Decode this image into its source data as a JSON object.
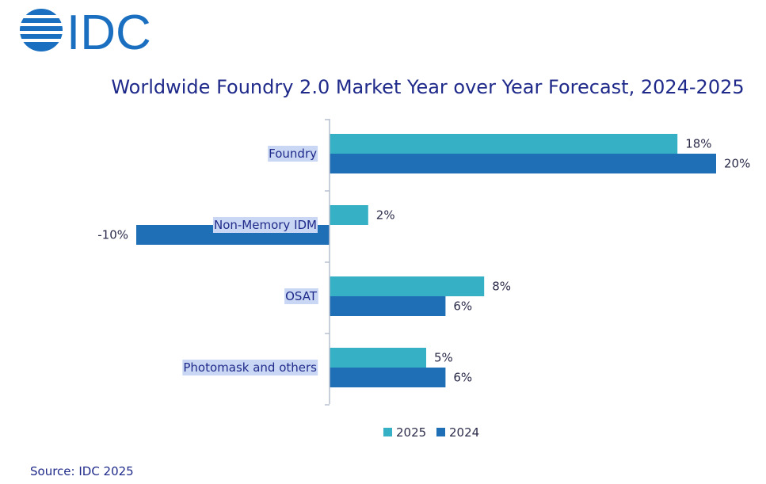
{
  "logo": {
    "text": "IDC",
    "color": "#1a6fc0"
  },
  "source": "Source: IDC 2025",
  "colors": {
    "s2025": "#35b0c4",
    "s2024": "#1f6fb7",
    "title": "#1f2a8a",
    "label_highlight": "#c9d7f4"
  },
  "chart_data": {
    "type": "bar",
    "orientation": "horizontal",
    "title": "Worldwide Foundry 2.0 Market Year over Year Forecast, 2024-2025",
    "categories": [
      "Foundry",
      "Non-Memory IDM",
      "OSAT",
      "Photomask and others"
    ],
    "series": [
      {
        "name": "2025",
        "values": [
          18,
          2,
          8,
          5
        ],
        "labels": [
          "18%",
          "2%",
          "8%",
          "5%"
        ]
      },
      {
        "name": "2024",
        "values": [
          20,
          -10,
          6,
          6
        ],
        "labels": [
          "20%",
          "-10%",
          "6%",
          "6%"
        ]
      }
    ],
    "legend": "bottom",
    "grid": false
  }
}
